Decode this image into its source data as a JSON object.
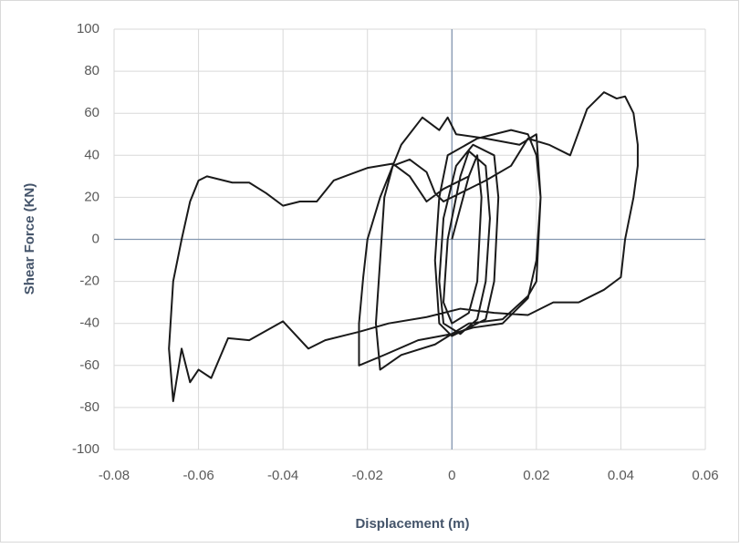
{
  "chart_data": {
    "type": "line",
    "x_label": "Displacement (m)",
    "y_label": "Shear Force (KN)",
    "xlim": [
      -0.08,
      0.06
    ],
    "xticks": [
      -0.08,
      -0.06,
      -0.04,
      -0.02,
      0,
      0.02,
      0.04,
      0.06
    ],
    "ylim": [
      -100,
      100
    ],
    "yticks": [
      -100,
      -80,
      -60,
      -40,
      -20,
      0,
      20,
      40,
      60,
      80,
      100
    ],
    "grid": true,
    "series": [
      {
        "color": "#1a1a1a",
        "x": [
          0,
          0.004,
          0.006,
          0.007,
          0.006,
          0.004,
          0,
          -0.002,
          -0.001,
          0.002,
          0.004,
          0.008,
          0.009,
          0.008,
          0.006,
          0.002,
          -0.002,
          -0.003,
          -0.002,
          0.001,
          0.005,
          0.01,
          0.011,
          0.01,
          0.008,
          0.004,
          0,
          -0.003,
          -0.004,
          -0.003,
          -0.001,
          0.006,
          0.014,
          0.018,
          0.02,
          0.021,
          0.02,
          0.018,
          0.012,
          0.005,
          0,
          -0.008,
          -0.016,
          -0.022,
          -0.022,
          -0.021,
          -0.02,
          -0.017,
          -0.012,
          -0.007,
          -0.003,
          -0.001,
          0.001,
          0.008,
          0.016,
          0.02,
          0.021,
          0.02,
          0.018,
          0.012,
          0.004,
          -0.004,
          -0.012,
          -0.017,
          -0.018,
          -0.017,
          -0.016,
          -0.014,
          -0.01,
          -0.006,
          -0.004,
          -0.002,
          0.002,
          0.008,
          0.014,
          0.018,
          0.023,
          0.028,
          0.032,
          0.036,
          0.039,
          0.041,
          0.043,
          0.044,
          0.044,
          0.043,
          0.041,
          0.04,
          0.036,
          0.03,
          0.024,
          0.018,
          0.01,
          0.002,
          -0.006,
          -0.015,
          -0.022,
          -0.03,
          -0.034,
          -0.04,
          -0.048,
          -0.053,
          -0.057,
          -0.06,
          -0.062,
          -0.064,
          -0.066,
          -0.067,
          -0.066,
          -0.064,
          -0.062,
          -0.06,
          -0.058,
          -0.052,
          -0.048,
          -0.044,
          -0.04,
          -0.036,
          -0.032,
          -0.028,
          -0.02,
          -0.014,
          -0.01,
          -0.006,
          -0.002,
          0.004
        ],
        "values": [
          0,
          30,
          40,
          20,
          -20,
          -35,
          -40,
          -30,
          0,
          30,
          42,
          35,
          10,
          -20,
          -38,
          -45,
          -40,
          -20,
          10,
          35,
          45,
          40,
          20,
          -20,
          -38,
          -42,
          -46,
          -40,
          -10,
          20,
          40,
          48,
          52,
          50,
          40,
          20,
          -10,
          -28,
          -40,
          -42,
          -45,
          -48,
          -55,
          -60,
          -40,
          -18,
          0,
          20,
          45,
          58,
          52,
          58,
          50,
          48,
          45,
          50,
          20,
          -20,
          -27,
          -38,
          -40,
          -50,
          -55,
          -62,
          -40,
          -10,
          20,
          35,
          38,
          32,
          22,
          18,
          22,
          28,
          35,
          48,
          45,
          40,
          62,
          70,
          67,
          68,
          60,
          45,
          35,
          20,
          0,
          -18,
          -24,
          -30,
          -30,
          -36,
          -35,
          -33,
          -37,
          -40,
          -44,
          -48,
          -52,
          -39,
          -48,
          -47,
          -66,
          -62,
          -68,
          -52,
          -77,
          -52,
          -20,
          0,
          18,
          28,
          30,
          27,
          27,
          22,
          16,
          18,
          18,
          28,
          34,
          36,
          30,
          18,
          24,
          30
        ]
      }
    ]
  }
}
